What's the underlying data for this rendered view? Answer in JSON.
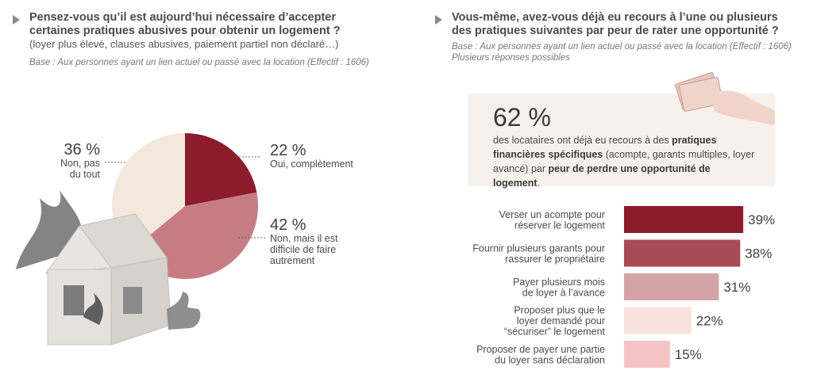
{
  "left": {
    "title": "Pensez-vous qu’il est aujourd’hui nécessaire d’accepter certaines pratiques abusives pour obtenir un logement ?",
    "subtitle": "(loyer plus élevé, clauses abusives, paiement partiel non déclaré…)",
    "base": "Base : Aux personnes ayant un lien actuel ou passé avec la location (Effectif : 1606)"
  },
  "right": {
    "title": "Vous-même, avez-vous déjà eu recours à l’une ou plusieurs des pratiques suivantes par peur de rater une opportunité ?",
    "base": "Base : Aux personnes ayant un lien actuel ou passé avec la location (Effectif : 1606) Plusieurs réponses possibles",
    "highlight": {
      "value": "62 %",
      "t1": "des locataires ont déjà eu recours à des ",
      "b1": "pratiques financières spécifiques",
      "t2": " (acompte, garants multiples, loyer avancé) par ",
      "b2": "peur de perdre une opportunité de logement",
      "t3": "."
    }
  },
  "chart_data": [
    {
      "type": "pie",
      "slices": [
        {
          "label": "Oui, complètement",
          "value": 22,
          "display": "22 %",
          "color": "#8c1c2c"
        },
        {
          "label": "Non, mais il est difficile de faire autrement",
          "value": 42,
          "display": "42 %",
          "color": "#c77c83"
        },
        {
          "label": "Non, pas du tout",
          "value": 36,
          "display": "36 %",
          "color": "#f3e8dc"
        }
      ]
    },
    {
      "type": "bar",
      "orientation": "horizontal",
      "categories": [
        "Verser un acompte pour réserver le logement",
        "Fournir plusieurs garants pour rassurer le propriétaire",
        "Payer plusieurs mois de loyer à l’avance",
        "Proposer plus que le loyer demandé pour “sécuriser” le logement",
        "Proposer de payer une partie du loyer sans déclaration"
      ],
      "category_lines": [
        [
          "Verser un acompte pour",
          "réserver le logement"
        ],
        [
          "Fournir plusieurs garants pour",
          "rassurer le propriétaire"
        ],
        [
          "Payer plusieurs mois",
          "de loyer à l’avance"
        ],
        [
          "Proposer plus que le",
          "loyer demandé pour",
          "“sécuriser” le logement"
        ],
        [
          "Proposer de payer une partie",
          "du loyer sans déclaration"
        ]
      ],
      "values": [
        39,
        38,
        31,
        22,
        15
      ],
      "value_labels": [
        "39%",
        "38%",
        "31%",
        "22%",
        "15%"
      ],
      "colors": [
        "#8c1c2c",
        "#a84b56",
        "#d4a3a6",
        "#f7e2dd",
        "#f6c3c5"
      ]
    }
  ]
}
